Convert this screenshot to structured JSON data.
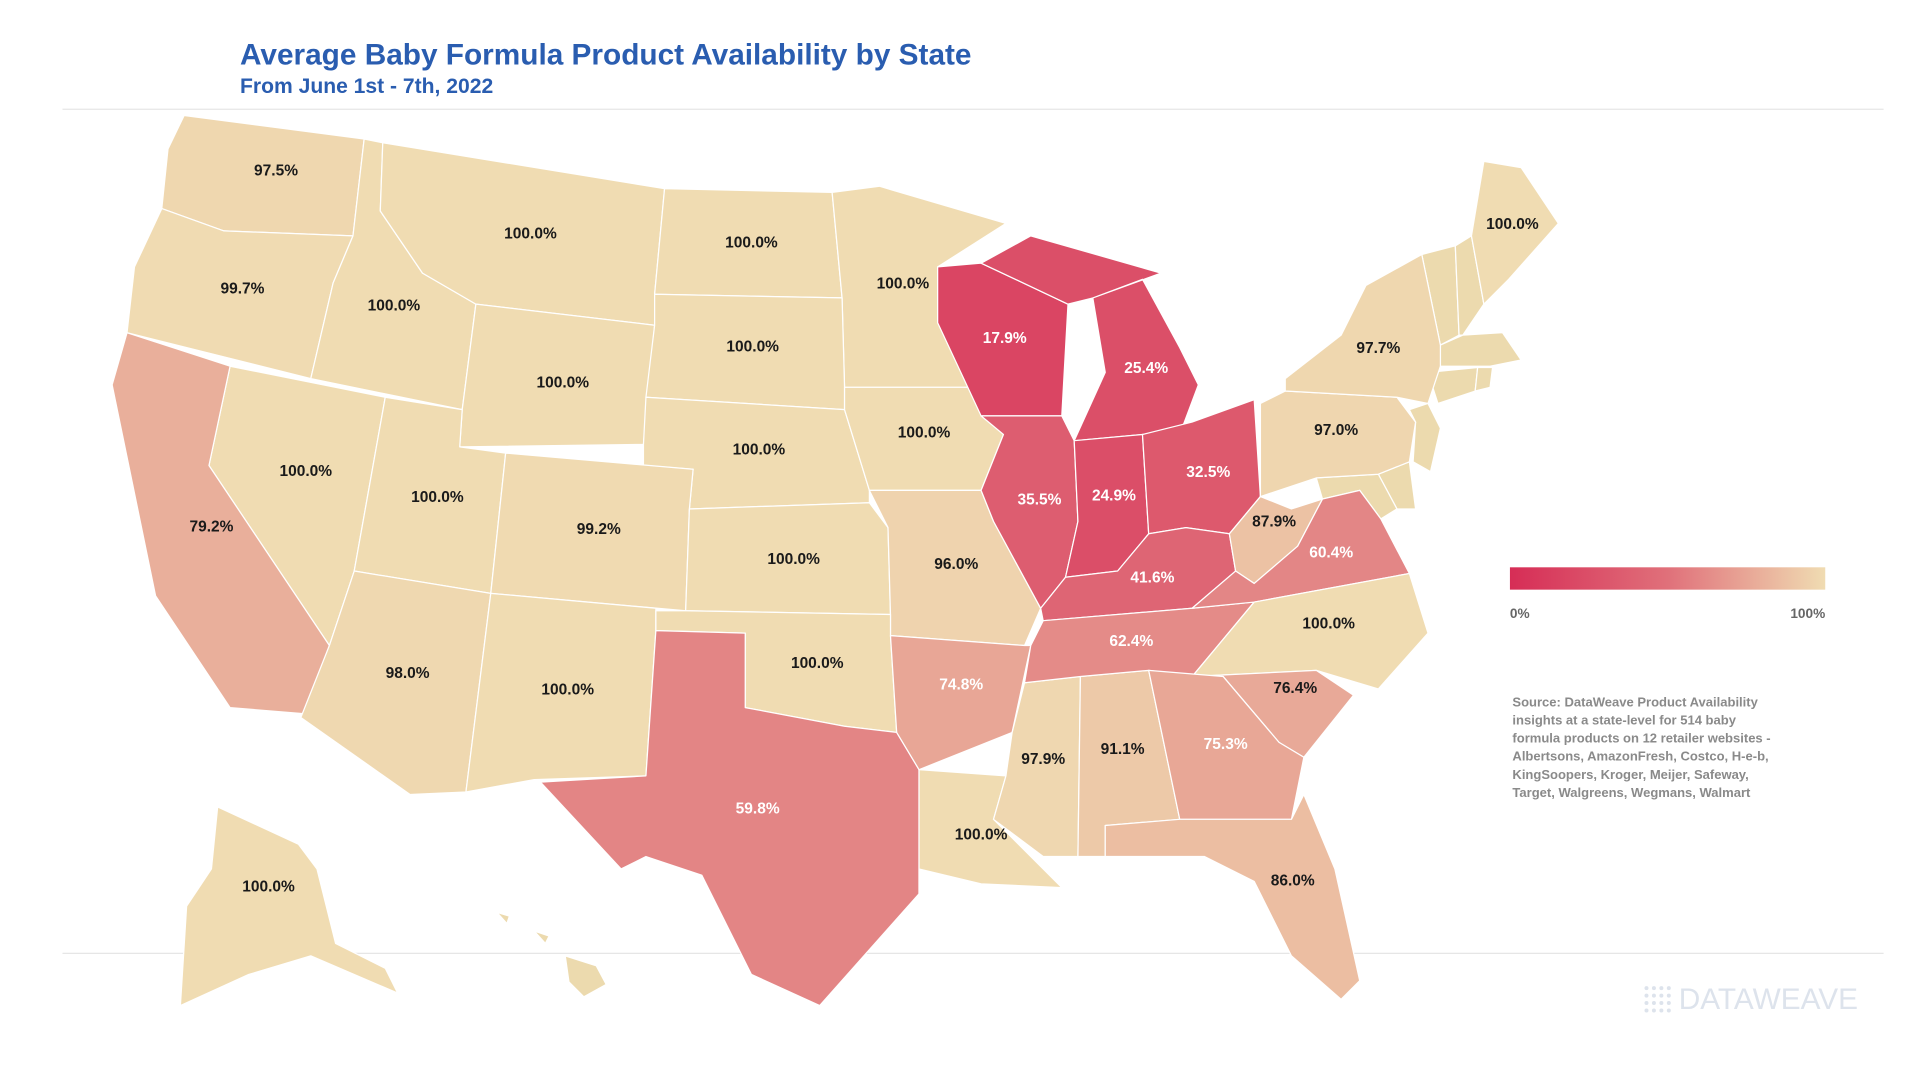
{
  "chart_data": {
    "type": "choropleth",
    "title": "Average Baby Formula Product Availability by State",
    "subtitle": "From June 1st - 7th, 2022",
    "values": [
      97.5,
      99.7,
      100.0,
      100.0,
      100.0,
      100.0,
      100.0,
      100.0,
      100.0,
      100.0,
      100.0,
      100.0,
      99.2,
      100.0,
      96.0,
      79.2,
      98.0,
      100.0,
      100.0,
      59.8,
      74.8,
      100.0,
      97.9,
      91.1,
      17.9,
      25.4,
      35.5,
      24.9,
      32.5,
      41.6,
      62.4,
      87.9,
      60.4,
      100.0,
      76.4,
      75.3,
      86.0,
      97.0,
      97.7,
      100.0,
      100.0
    ],
    "value_labels": [
      "97.5%",
      "99.7%",
      "100.0%",
      "100.0%",
      "100.0%",
      "100.0%",
      "100.0%",
      "100.0%",
      "100.0%",
      "100.0%",
      "100.0%",
      "100.0%",
      "99.2%",
      "100.0%",
      "96.0%",
      "79.2%",
      "98.0%",
      "100.0%",
      "100.0%",
      "59.8%",
      "74.8%",
      "100.0%",
      "97.9%",
      "91.1%",
      "17.9%",
      "25.4%",
      "35.5%",
      "24.9%",
      "32.5%",
      "41.6%",
      "62.4%",
      "87.9%",
      "60.4%",
      "100.0%",
      "76.4%",
      "75.3%",
      "86.0%",
      "97.0%",
      "97.7%",
      "100.0%",
      "100.0%"
    ],
    "clim": [
      0,
      100
    ],
    "colors": [
      "#d62d56",
      "#e0707a",
      "#f0dcb2"
    ],
    "legend": {
      "ticks": [
        {
          "value": 0,
          "label": "0%"
        },
        {
          "value": 100,
          "label": "100%"
        }
      ]
    },
    "source": [
      "Source: DataWeave Product Availability",
      "insights at a state-level for 514 baby",
      "formula products on 12 retailer websites -",
      "Albertsons, AmazonFresh, Costco, H-e-b,",
      "KingSoopers, Kroger, Meijer, Safeway,",
      "Target, Walgreens, Wegmans, Walmart"
    ],
    "brand": "DATAWEAVE"
  }
}
